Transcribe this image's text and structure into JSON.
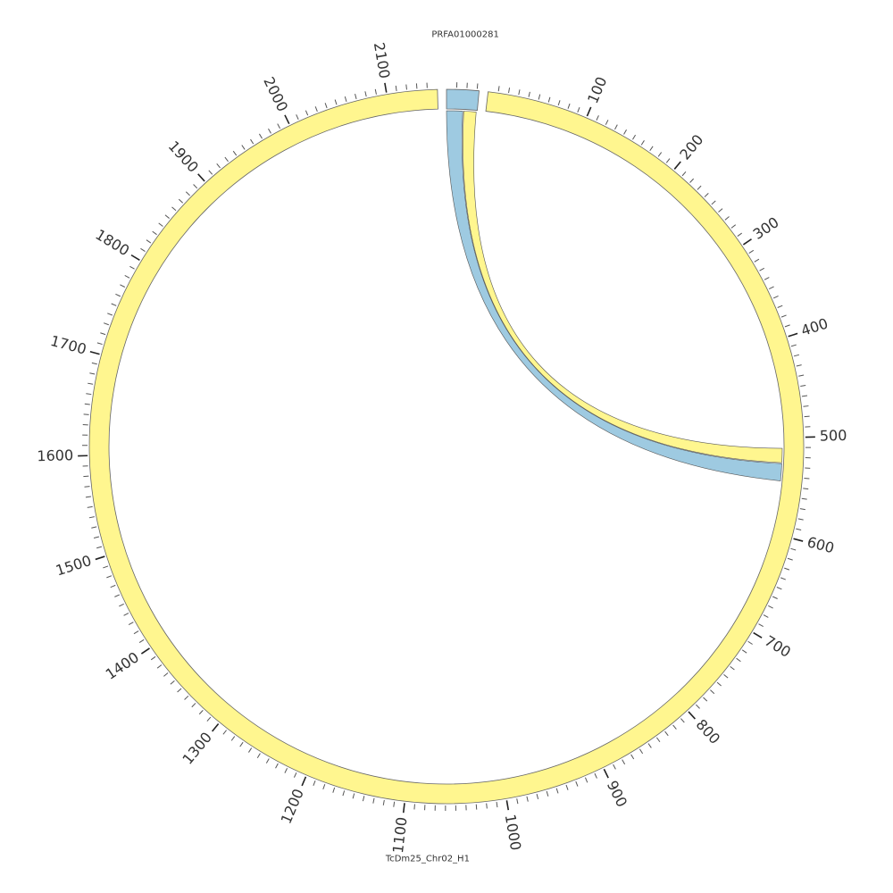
{
  "chart_data": {
    "type": "chord",
    "segments": [
      {
        "name": "PRFA01000281",
        "length": 32,
        "color": "#9ecae1",
        "major_ticks": []
      },
      {
        "name": "TcDm25_Chr02_H1",
        "length": 2150,
        "color": "#fff68f",
        "major_ticks": [
          100,
          200,
          300,
          400,
          500,
          600,
          700,
          800,
          900,
          1000,
          1100,
          1200,
          1300,
          1400,
          1500,
          1600,
          1700,
          1800,
          1900,
          2000,
          2100
        ]
      }
    ],
    "minor_tick_step": 10,
    "links": [
      {
        "color": "#9ecae1",
        "source": {
          "segment": 0,
          "start": 0,
          "end": 17
        },
        "target": {
          "segment": 1,
          "start": 527,
          "end": 545
        }
      },
      {
        "color": "#fff68f",
        "source": {
          "segment": 0,
          "start": 18,
          "end": 31
        },
        "target": {
          "segment": 1,
          "start": 511,
          "end": 526
        }
      }
    ]
  }
}
